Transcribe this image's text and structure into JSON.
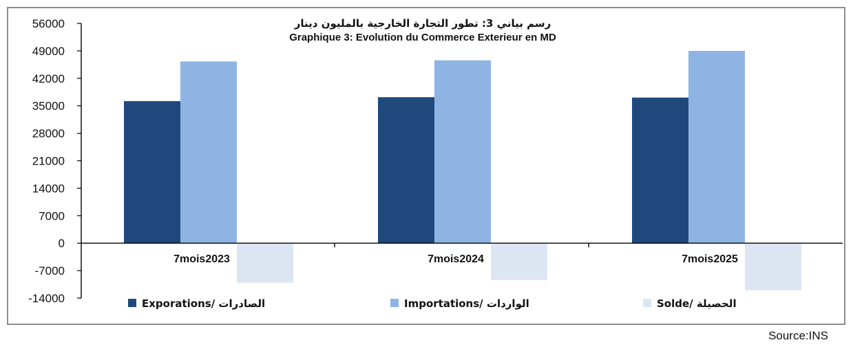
{
  "chart_data": {
    "type": "bar",
    "title_ar": "رسم بياني 3: تطور التجارة الخارجية بالمليون دينار",
    "title_fr": "Graphique 3: Evolution du Commerce Exterieur en MD",
    "categories": [
      "7mois2023",
      "7mois2024",
      "7mois2025"
    ],
    "series": [
      {
        "name": "Exporations/ الصادرات",
        "color": "#1f497d",
        "values": [
          36200,
          37200,
          37100
        ]
      },
      {
        "name": "Importations/ الواردات",
        "color": "#8eb4e3",
        "values": [
          46300,
          46600,
          49000
        ]
      },
      {
        "name": "Solde/ الحصيلة",
        "color": "#dce6f2",
        "values": [
          -10100,
          -9400,
          -12000
        ]
      }
    ],
    "ylim": [
      -14000,
      56000
    ],
    "yticks": [
      56000,
      49000,
      42000,
      35000,
      28000,
      21000,
      14000,
      7000,
      0,
      -7000,
      -14000
    ],
    "legend_position": "bottom",
    "grid": false
  },
  "source": "Source:INS"
}
